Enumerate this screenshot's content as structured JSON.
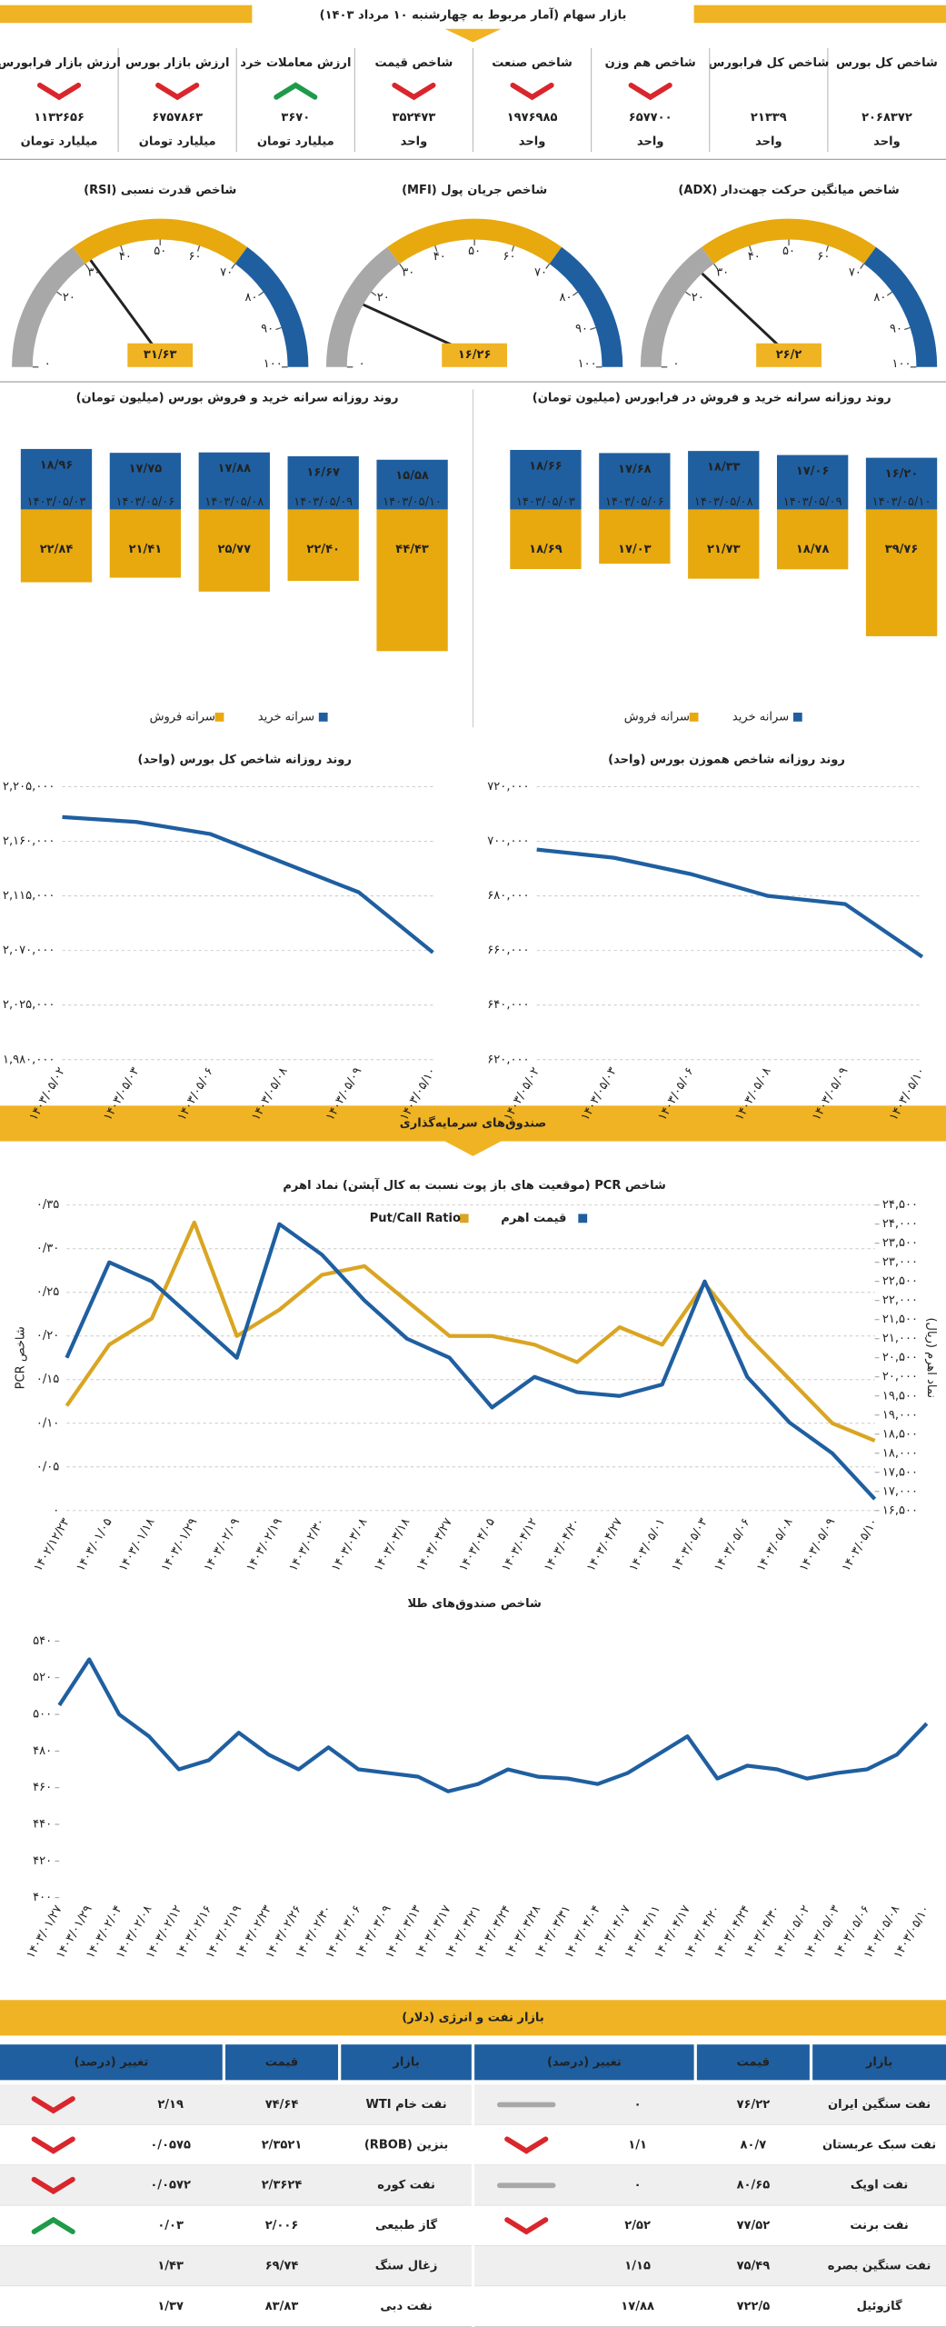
{
  "header": {
    "title": "بازار سهام (آمار مربوط به چهارشنبه ۱۰ مرداد ۱۴۰۳)"
  },
  "stats": [
    {
      "label": "شاخص کل بورس",
      "value": "۲۰۶۸۳۷۲",
      "unit": "واحد"
    },
    {
      "label": "شاخص کل فرابورس",
      "value": "۲۱۳۳۹",
      "unit": "واحد"
    },
    {
      "label": "شاخص هم وزن",
      "value": "۶۵۷۷۰۰",
      "unit": "واحد",
      "trend": "down"
    },
    {
      "label": "شاخص صنعت",
      "value": "۱۹۷۶۹۸۵",
      "unit": "واحد",
      "trend": "down"
    },
    {
      "label": "شاخص قیمت",
      "value": "۳۵۲۴۷۳",
      "unit": "واحد",
      "trend": "down"
    },
    {
      "label": "ارزش معاملات خرد",
      "value": "۳۶۷۰",
      "unit": "میلیارد تومان",
      "trend": "up"
    },
    {
      "label": "ارزش بازار بورس",
      "value": "۶۷۵۷۸۶۳",
      "unit": "میلیارد تومان",
      "trend": "down"
    },
    {
      "label": "ارزش بازار فرابورس",
      "value": "۱۱۳۲۶۵۶",
      "unit": "میلیارد تومان",
      "trend": "down"
    }
  ],
  "chart_data": [
    {
      "type": "gauge",
      "title": "شاخص میانگین حرکت جهت‌دار (ADX)",
      "value": 26.2,
      "value_label": "۲۶/۲",
      "ylim": [
        0,
        100
      ],
      "yticks": [
        {
          "value": 0,
          "label": "۰"
        },
        {
          "value": 20,
          "label": "۲۰"
        },
        {
          "value": 30,
          "label": "۳۰"
        },
        {
          "value": 40,
          "label": "۴۰"
        },
        {
          "value": 50,
          "label": "۵۰"
        },
        {
          "value": 60,
          "label": "۶۰"
        },
        {
          "value": 70,
          "label": "۷۰"
        },
        {
          "value": 80,
          "label": "۸۰"
        },
        {
          "value": 90,
          "label": "۹۰"
        },
        {
          "value": 100,
          "label": "۱۰۰"
        }
      ],
      "bands": [
        {
          "to": 30,
          "color": "#a8a8a8"
        },
        {
          "to": 70,
          "color": "#e8a90e"
        },
        {
          "to": 100,
          "color": "#1f5fa0"
        }
      ]
    },
    {
      "type": "gauge",
      "title": "شاخص جریان پول (MFI)",
      "value": 16.26,
      "value_label": "۱۶/۲۶",
      "ylim": [
        0,
        100
      ],
      "yticks": [
        {
          "value": 0,
          "label": "۰"
        },
        {
          "value": 20,
          "label": "۲۰"
        },
        {
          "value": 30,
          "label": "۳۰"
        },
        {
          "value": 40,
          "label": "۴۰"
        },
        {
          "value": 50,
          "label": "۵۰"
        },
        {
          "value": 60,
          "label": "۶۰"
        },
        {
          "value": 70,
          "label": "۷۰"
        },
        {
          "value": 80,
          "label": "۸۰"
        },
        {
          "value": 90,
          "label": "۹۰"
        },
        {
          "value": 100,
          "label": "۱۰۰"
        }
      ],
      "bands": [
        {
          "to": 30,
          "color": "#a8a8a8"
        },
        {
          "to": 70,
          "color": "#e8a90e"
        },
        {
          "to": 100,
          "color": "#1f5fa0"
        }
      ]
    },
    {
      "type": "gauge",
      "title": "شاخص قدرت نسبی (RSI)",
      "value": 31.63,
      "value_label": "۳۱/۶۳",
      "ylim": [
        0,
        100
      ],
      "yticks": [
        {
          "value": 0,
          "label": "۰"
        },
        {
          "value": 20,
          "label": "۲۰"
        },
        {
          "value": 30,
          "label": "۳۰"
        },
        {
          "value": 40,
          "label": "۴۰"
        },
        {
          "value": 50,
          "label": "۵۰"
        },
        {
          "value": 60,
          "label": "۶۰"
        },
        {
          "value": 70,
          "label": "۷۰"
        },
        {
          "value": 80,
          "label": "۸۰"
        },
        {
          "value": 90,
          "label": "۹۰"
        },
        {
          "value": 100,
          "label": "۱۰۰"
        }
      ],
      "bands": [
        {
          "to": 30,
          "color": "#a8a8a8"
        },
        {
          "to": 70,
          "color": "#e8a90e"
        },
        {
          "to": 100,
          "color": "#1f5fa0"
        }
      ]
    },
    {
      "type": "bar",
      "title": "روند روزانه سرانه خرید و فروش بورس (میلیون تومان)",
      "categories": [
        "۱۴۰۳/۰۵/۰۳",
        "۱۴۰۳/۰۵/۰۶",
        "۱۴۰۳/۰۵/۰۸",
        "۱۴۰۳/۰۵/۰۹",
        "۱۴۰۳/۰۵/۱۰"
      ],
      "series": [
        {
          "name": "سرانه خرید",
          "color": "#1f5fa0",
          "values": [
            18.96,
            17.75,
            17.88,
            16.67,
            15.58
          ],
          "value_labels": [
            "۱۸/۹۶",
            "۱۷/۷۵",
            "۱۷/۸۸",
            "۱۶/۶۷",
            "۱۵/۵۸"
          ]
        },
        {
          "name": "سرانه فروش",
          "color": "#e8a90e",
          "values": [
            22.84,
            21.41,
            25.77,
            22.4,
            44.43
          ],
          "value_labels": [
            "۲۲/۸۴",
            "۲۱/۴۱",
            "۲۵/۷۷",
            "۲۲/۴۰",
            "۴۴/۴۳"
          ]
        }
      ]
    },
    {
      "type": "bar",
      "title": "روند روزانه سرانه خرید و فروش در فرابورس (میلیون تومان)",
      "categories": [
        "۱۴۰۳/۰۵/۰۳",
        "۱۴۰۳/۰۵/۰۶",
        "۱۴۰۳/۰۵/۰۸",
        "۱۴۰۳/۰۵/۰۹",
        "۱۴۰۳/۰۵/۱۰"
      ],
      "series": [
        {
          "name": "سرانه خرید",
          "color": "#1f5fa0",
          "values": [
            18.66,
            17.68,
            18.33,
            17.06,
            16.2
          ],
          "value_labels": [
            "۱۸/۶۶",
            "۱۷/۶۸",
            "۱۸/۳۳",
            "۱۷/۰۶",
            "۱۶/۲۰"
          ]
        },
        {
          "name": "سرانه فروش",
          "color": "#e8a90e",
          "values": [
            18.69,
            17.03,
            21.73,
            18.78,
            39.76
          ],
          "value_labels": [
            "۱۸/۶۹",
            "۱۷/۰۳",
            "۲۱/۷۳",
            "۱۸/۷۸",
            "۳۹/۷۶"
          ]
        }
      ]
    },
    {
      "type": "line",
      "title": "روند روزانه شاخص کل بورس (واحد)",
      "color": "#1f5fa0",
      "grid": true,
      "categories": [
        "۱۴۰۳/۰۵/۰۲",
        "۱۴۰۳/۰۵/۰۳",
        "۱۴۰۳/۰۵/۰۶",
        "۱۴۰۳/۰۵/۰۸",
        "۱۴۰۳/۰۵/۰۹",
        "۱۴۰۳/۰۵/۱۰"
      ],
      "values": [
        2180000,
        2176000,
        2166000,
        2142000,
        2118000,
        2068372
      ],
      "ylim": [
        1980000,
        2205000
      ],
      "yticks": [
        {
          "value": 1980000,
          "label": "۱,۹۸۰,۰۰۰"
        },
        {
          "value": 2025000,
          "label": "۲,۰۲۵,۰۰۰"
        },
        {
          "value": 2070000,
          "label": "۲,۰۷۰,۰۰۰"
        },
        {
          "value": 2115000,
          "label": "۲,۱۱۵,۰۰۰"
        },
        {
          "value": 2160000,
          "label": "۲,۱۶۰,۰۰۰"
        },
        {
          "value": 2205000,
          "label": "۲,۲۰۵,۰۰۰"
        }
      ]
    },
    {
      "type": "line",
      "title": "روند روزانه شاخص هموزن بورس (واحد)",
      "color": "#1f5fa0",
      "grid": true,
      "categories": [
        "۱۴۰۳/۰۵/۰۲",
        "۱۴۰۳/۰۵/۰۳",
        "۱۴۰۳/۰۵/۰۶",
        "۱۴۰۳/۰۵/۰۸",
        "۱۴۰۳/۰۵/۰۹",
        "۱۴۰۳/۰۵/۱۰"
      ],
      "values": [
        697000,
        694000,
        688000,
        680000,
        677000,
        657700
      ],
      "ylim": [
        620000,
        720000
      ],
      "yticks": [
        {
          "value": 620000,
          "label": "۶۲۰,۰۰۰"
        },
        {
          "value": 640000,
          "label": "۶۴۰,۰۰۰"
        },
        {
          "value": 660000,
          "label": "۶۶۰,۰۰۰"
        },
        {
          "value": 680000,
          "label": "۶۸۰,۰۰۰"
        },
        {
          "value": 700000,
          "label": "۷۰۰,۰۰۰"
        },
        {
          "value": 720000,
          "label": "۷۲۰,۰۰۰"
        }
      ]
    },
    {
      "type": "line",
      "title": "شاخص PCR (موقعیت های باز پوت نسبت به کال آپشن) نماد اهرم",
      "grid": true,
      "ylabel": "شاخص PCR",
      "y2label": "نماد اهرم (ریال)",
      "categories": [
        "۱۴۰۲/۱۲/۲۳",
        "۱۴۰۳/۰۱/۰۵",
        "۱۴۰۳/۰۱/۱۸",
        "۱۴۰۳/۰۱/۲۹",
        "۱۴۰۳/۰۲/۰۹",
        "۱۴۰۳/۰۲/۱۹",
        "۱۴۰۳/۰۲/۳۰",
        "۱۴۰۳/۰۳/۰۸",
        "۱۴۰۳/۰۳/۱۸",
        "۱۴۰۳/۰۳/۲۷",
        "۱۴۰۳/۰۴/۰۵",
        "۱۴۰۳/۰۴/۱۲",
        "۱۴۰۳/۰۴/۲۰",
        "۱۴۰۳/۰۴/۲۷",
        "۱۴۰۳/۰۵/۰۱",
        "۱۴۰۳/۰۵/۰۳",
        "۱۴۰۳/۰۵/۰۶",
        "۱۴۰۳/۰۵/۰۸",
        "۱۴۰۳/۰۵/۰۹",
        "۱۴۰۳/۰۵/۱۰"
      ],
      "series": [
        {
          "name": "Put/Call Ratio",
          "color": "#d9a522",
          "values": [
            0.12,
            0.19,
            0.22,
            0.33,
            0.2,
            0.23,
            0.27,
            0.28,
            0.24,
            0.2,
            0.2,
            0.19,
            0.17,
            0.21,
            0.19,
            0.26,
            0.2,
            0.15,
            0.1,
            0.08
          ]
        },
        {
          "name": "قیمت اهرم",
          "color": "#1f5fa0",
          "axis": "y2",
          "values": [
            20500,
            23000,
            22500,
            21500,
            20500,
            24000,
            23200,
            22000,
            21000,
            20500,
            19200,
            20000,
            19600,
            19500,
            19800,
            22500,
            20000,
            18800,
            18000,
            16800
          ]
        }
      ],
      "ylim": [
        0,
        0.35
      ],
      "yticks": [
        {
          "value": 0,
          "label": "۰"
        },
        {
          "value": 0.05,
          "label": "۰/۰۵"
        },
        {
          "value": 0.1,
          "label": "۰/۱۰"
        },
        {
          "value": 0.15,
          "label": "۰/۱۵"
        },
        {
          "value": 0.2,
          "label": "۰/۲۰"
        },
        {
          "value": 0.25,
          "label": "۰/۲۵"
        },
        {
          "value": 0.3,
          "label": "۰/۳۰"
        },
        {
          "value": 0.35,
          "label": "۰/۳۵"
        }
      ],
      "y2lim": [
        16500,
        24500
      ],
      "y2ticks": [
        {
          "value": 16500,
          "label": "۱۶,۵۰۰"
        },
        {
          "value": 17000,
          "label": "۱۷,۰۰۰"
        },
        {
          "value": 17500,
          "label": "۱۷,۵۰۰"
        },
        {
          "value": 18000,
          "label": "۱۸,۰۰۰"
        },
        {
          "value": 18500,
          "label": "۱۸,۵۰۰"
        },
        {
          "value": 19000,
          "label": "۱۹,۰۰۰"
        },
        {
          "value": 19500,
          "label": "۱۹,۵۰۰"
        },
        {
          "value": 20000,
          "label": "۲۰,۰۰۰"
        },
        {
          "value": 20500,
          "label": "۲۰,۵۰۰"
        },
        {
          "value": 21000,
          "label": "۲۱,۰۰۰"
        },
        {
          "value": 21500,
          "label": "۲۱,۵۰۰"
        },
        {
          "value": 22000,
          "label": "۲۲,۰۰۰"
        },
        {
          "value": 22500,
          "label": "۲۲,۵۰۰"
        },
        {
          "value": 23000,
          "label": "۲۳,۰۰۰"
        },
        {
          "value": 23500,
          "label": "۲۳,۵۰۰"
        },
        {
          "value": 24000,
          "label": "۲۴,۰۰۰"
        },
        {
          "value": 24500,
          "label": "۲۴,۵۰۰"
        }
      ]
    },
    {
      "type": "line",
      "title": "شاخص صندوق‌های طلا",
      "color": "#1f5fa0",
      "grid": false,
      "categories": [
        "۱۴۰۳/۰۱/۲۷",
        "۱۴۰۳/۰۱/۲۹",
        "۱۴۰۳/۰۲/۰۴",
        "۱۴۰۳/۰۲/۰۸",
        "۱۴۰۳/۰۲/۱۲",
        "۱۴۰۳/۰۲/۱۶",
        "۱۴۰۳/۰۲/۱۹",
        "۱۴۰۳/۰۲/۲۳",
        "۱۴۰۳/۰۲/۲۶",
        "۱۴۰۳/۰۲/۳۰",
        "۱۴۰۳/۰۳/۰۶",
        "۱۴۰۳/۰۳/۰۹",
        "۱۴۰۳/۰۳/۱۳",
        "۱۴۰۳/۰۳/۱۷",
        "۱۴۰۳/۰۳/۲۱",
        "۱۴۰۳/۰۳/۲۴",
        "۱۴۰۳/۰۳/۲۸",
        "۱۴۰۳/۰۳/۳۱",
        "۱۴۰۳/۰۴/۰۴",
        "۱۴۰۳/۰۴/۰۷",
        "۱۴۰۳/۰۴/۱۱",
        "۱۴۰۳/۰۴/۱۷",
        "۱۴۰۳/۰۴/۲۰",
        "۱۴۰۳/۰۴/۲۴",
        "۱۴۰۳/۰۴/۳۰",
        "۱۴۰۳/۰۵/۰۲",
        "۱۴۰۳/۰۵/۰۳",
        "۱۴۰۳/۰۵/۰۶",
        "۱۴۰۳/۰۵/۰۸",
        "۱۴۰۳/۰۵/۱۰"
      ],
      "values": [
        505,
        530,
        500,
        488,
        470,
        475,
        490,
        478,
        470,
        482,
        470,
        468,
        466,
        458,
        462,
        470,
        466,
        465,
        462,
        468,
        478,
        488,
        465,
        472,
        470,
        465,
        468,
        470,
        478,
        495
      ],
      "ylim": [
        400,
        540
      ],
      "yticks": [
        {
          "value": 400,
          "label": "۴۰۰"
        },
        {
          "value": 420,
          "label": "۴۲۰"
        },
        {
          "value": 440,
          "label": "۴۴۰"
        },
        {
          "value": 460,
          "label": "۴۶۰"
        },
        {
          "value": 480,
          "label": "۴۸۰"
        },
        {
          "value": 500,
          "label": "۵۰۰"
        },
        {
          "value": 520,
          "label": "۵۲۰"
        },
        {
          "value": 540,
          "label": "۵۴۰"
        }
      ]
    }
  ],
  "funds_title": "صندوق‌های سرمایه‌گذاری",
  "table": {
    "title": "بازار نفت و انرژی (دلار)",
    "header": [
      "بازار",
      "قیمت",
      "تغییر (درصد)"
    ],
    "right": [
      {
        "market": "نفت سنگین ایران",
        "price": "۷۶/۲۲",
        "change": "۰",
        "trend": "flat"
      },
      {
        "market": "نفت سبک عربستان",
        "price": "۸۰/۷",
        "change": "۱/۱",
        "trend": "down"
      },
      {
        "market": "نفت اوپک",
        "price": "۸۰/۶۵",
        "change": "۰",
        "trend": "flat"
      },
      {
        "market": "نفت برنت",
        "price": "۷۷/۵۲",
        "change": "۲/۵۲",
        "trend": "down"
      },
      {
        "market": "نفت سنگین بصره",
        "price": "۷۵/۴۹",
        "change": "۱/۱۵"
      },
      {
        "market": "گازوئیل",
        "price": "۷۲۲/۵",
        "change": "۱۷/۸۸"
      }
    ],
    "left": [
      {
        "market": "نفت خام WTI",
        "price": "۷۴/۶۴",
        "change": "۲/۱۹",
        "trend": "down"
      },
      {
        "market": "بنزین (RBOB)",
        "price": "۲/۳۵۲۱",
        "change": "۰/۰۵۷۵",
        "trend": "down"
      },
      {
        "market": "نفت کوره",
        "price": "۲/۳۶۲۴",
        "change": "۰/۰۵۷۲",
        "trend": "down"
      },
      {
        "market": "گاز طبیعی",
        "price": "۲/۰۰۶",
        "change": "۰/۰۳",
        "trend": "up"
      },
      {
        "market": "زغال سنگ",
        "price": "۶۹/۷۴",
        "change": "۱/۴۳"
      },
      {
        "market": "نفت دبی",
        "price": "۸۳/۸۳",
        "change": "۱/۳۷"
      }
    ]
  }
}
